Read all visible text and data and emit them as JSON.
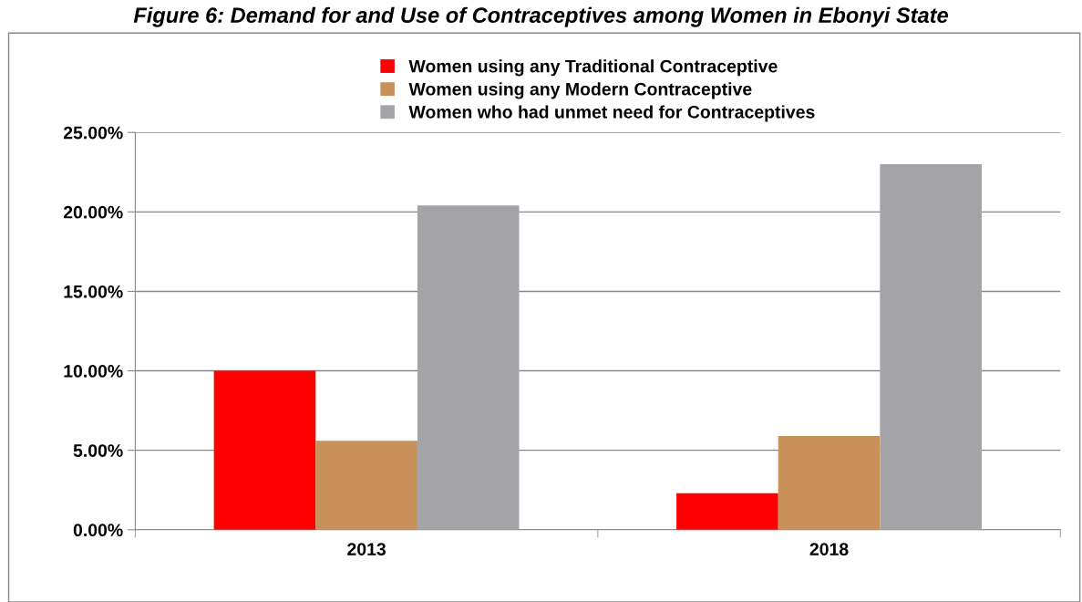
{
  "chart_data": {
    "type": "bar",
    "title": "Figure 6: Demand for and Use of Contraceptives among Women in Ebonyi State",
    "categories": [
      "2013",
      "2018"
    ],
    "series": [
      {
        "name": "Women using any Traditional Contraceptive",
        "color": "#ff0000",
        "values": [
          10.0,
          2.3
        ]
      },
      {
        "name": "Women using any Modern Contraceptive",
        "color": "#c8915a",
        "values": [
          5.6,
          5.9
        ]
      },
      {
        "name": "Women who had unmet need for Contraceptives",
        "color": "#a4a4a8",
        "values": [
          20.4,
          23.0
        ]
      }
    ],
    "ylim": [
      0,
      25
    ],
    "yticks": [
      {
        "value": 0,
        "label": "0.00%"
      },
      {
        "value": 5,
        "label": "5.00%"
      },
      {
        "value": 10,
        "label": "10.00%"
      },
      {
        "value": 15,
        "label": "15.00%"
      },
      {
        "value": 20,
        "label": "20.00%"
      },
      {
        "value": 25,
        "label": "25.00%"
      }
    ],
    "grid": "y",
    "legend": "top"
  }
}
